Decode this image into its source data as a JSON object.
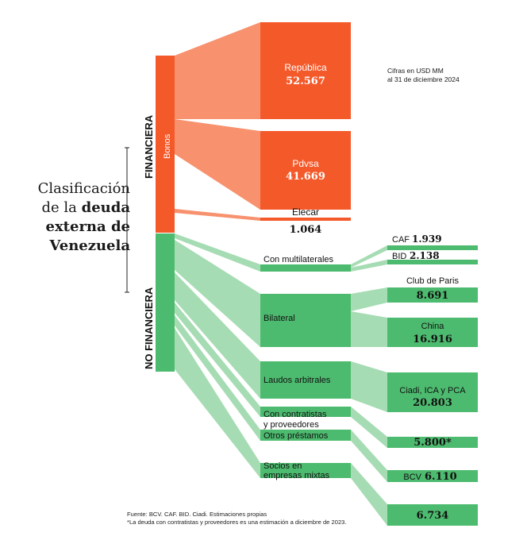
{
  "title": {
    "line1": "Clasificación",
    "line2_regular": "de la ",
    "line2_bold": "deuda",
    "line3": "externa de",
    "line4": "Venezuela"
  },
  "note": {
    "line1": "Cifras en USD MM",
    "line2": "al 31 de diciembre 2024"
  },
  "colors": {
    "financial_dark": "#f4592a",
    "financial_light": "#f7916e",
    "nonfinancial_dark": "#4dbb6f",
    "nonfinancial_light": "#a6dcb3"
  },
  "categories": {
    "financiera": "FINANCIERA",
    "bonos": "Bonos",
    "no_financiera": "NO FINANCIERA"
  },
  "financial_items": [
    {
      "name": "República",
      "value": "52.567"
    },
    {
      "name": "Pdvsa",
      "value": "41.669"
    },
    {
      "name": "Elecar",
      "value": "1.064"
    }
  ],
  "nonfinancial_groups": {
    "multilaterales": "Con multilaterales",
    "bilateral": "Bilateral",
    "laudos": "Laudos arbitrales",
    "contratistas_line1": "Con contratistas",
    "contratistas_line2": "y proveedores",
    "otros": "Otros préstamos",
    "socios_line1": "Socios en",
    "socios_line2": "empresas mixtas"
  },
  "nonfinancial_items": {
    "caf": {
      "name": "CAF",
      "value": "1.939"
    },
    "bid": {
      "name": "BID",
      "value": "2.138"
    },
    "club": {
      "name": "Club de Paris",
      "value": "8.691"
    },
    "china": {
      "name": "China",
      "value": "16.916"
    },
    "ciadi": {
      "name": "Ciadi, ICA y PCA",
      "value": "20.803"
    },
    "contratistas": {
      "value": "5.800*"
    },
    "bcv": {
      "name": "BCV",
      "value": "6.110"
    },
    "socios": {
      "value": "6.734"
    }
  },
  "footer": {
    "line1": "Fuente: BCV. CAF. BID. Ciadi. Estimaciones propias",
    "line2": "*La deuda con contratistas y proveedores es una estimación a diciembre de 2023."
  }
}
